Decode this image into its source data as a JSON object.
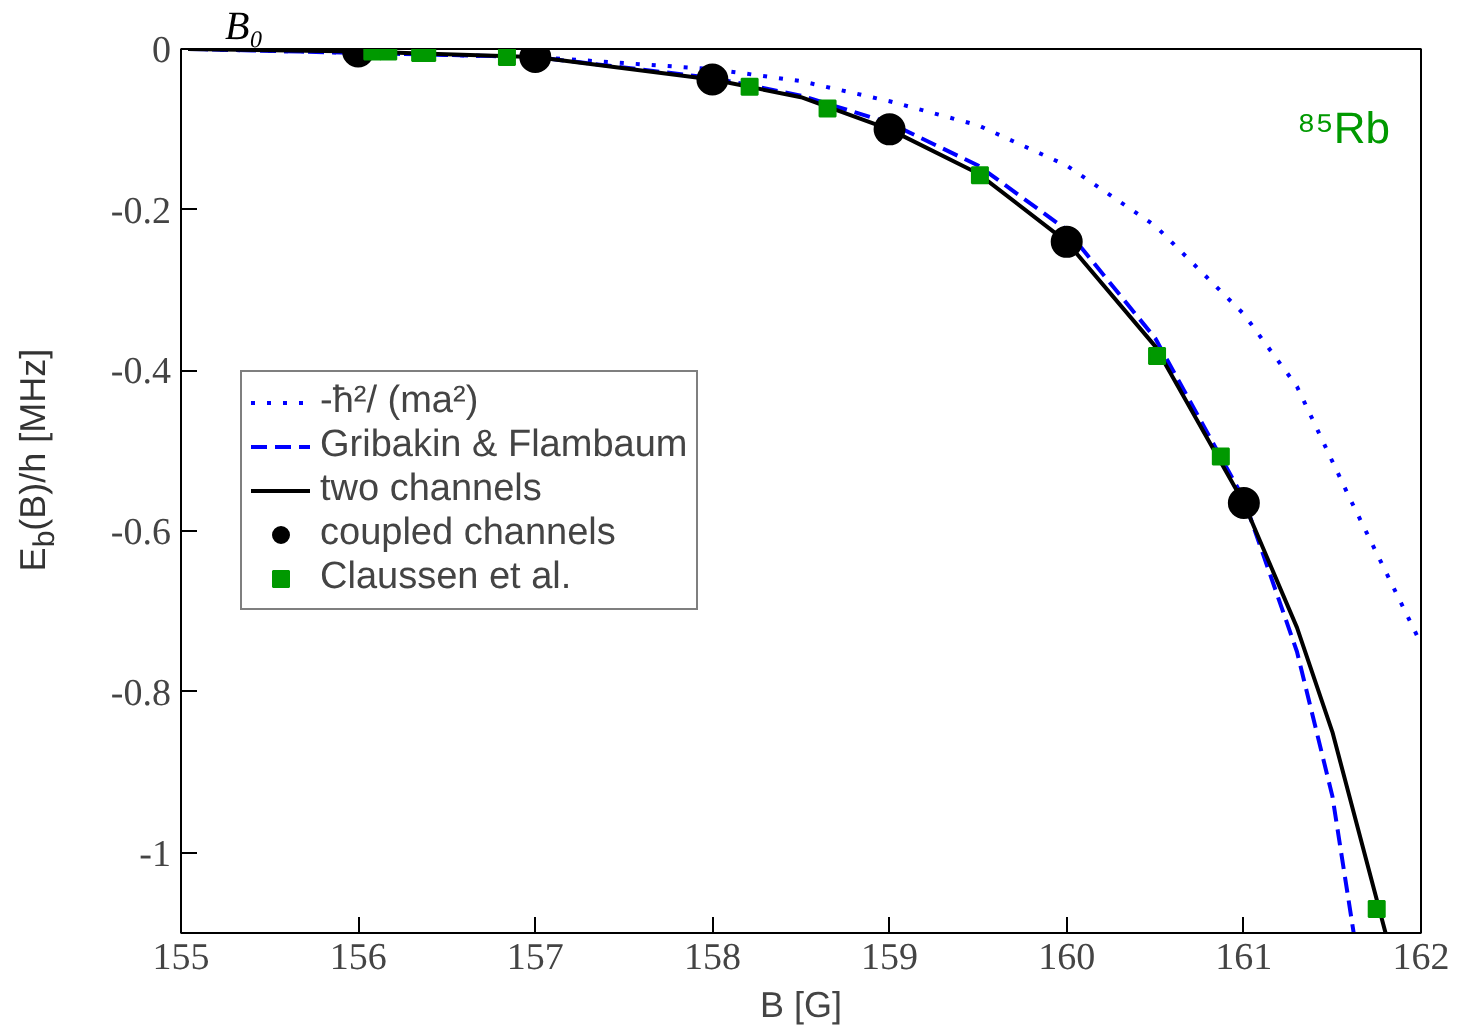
{
  "chart_data": {
    "type": "line",
    "xlabel": "B [G]",
    "ylabel": "E$_{b}$(B)/h [MHz]",
    "annotations": [
      "B₀",
      "⁸⁵Rb"
    ],
    "xlim": [
      155,
      162
    ],
    "ylim": [
      -1.1,
      0
    ],
    "xticks": [
      155,
      156,
      157,
      158,
      159,
      160,
      161,
      162
    ],
    "yticks": [
      {
        "value": -1,
        "label": "-1"
      },
      {
        "value": -0.8,
        "label": "-0.8"
      },
      {
        "value": -0.6,
        "label": "-0.6"
      },
      {
        "value": -0.4,
        "label": "-0.4"
      },
      {
        "value": -0.2,
        "label": "-0.2"
      },
      0
    ],
    "grid": false,
    "legend": "left",
    "series": [
      {
        "name": "-ħ²/ (ma²)",
        "color": "#0000ff",
        "line_style": "dotted",
        "x": [
          155.04,
          157,
          158,
          158.5,
          159,
          159.5,
          160,
          160.5,
          161,
          161.3,
          161.6,
          162
        ],
        "values": [
          0,
          -0.01,
          -0.025,
          -0.04,
          -0.065,
          -0.095,
          -0.145,
          -0.22,
          -0.33,
          -0.42,
          -0.56,
          -0.74
        ]
      },
      {
        "name": "Gribakin & Flambaum",
        "color": "#0000ff",
        "line_style": "dashed",
        "x": [
          155.04,
          157,
          158,
          158.5,
          159,
          159.5,
          160,
          160.5,
          161,
          161.3,
          161.5,
          161.62
        ],
        "values": [
          0,
          -0.01,
          -0.036,
          -0.058,
          -0.092,
          -0.145,
          -0.225,
          -0.36,
          -0.56,
          -0.75,
          -0.93,
          -1.1
        ]
      },
      {
        "name": "two channels",
        "color": "#000000",
        "line_style": "solid",
        "x": [
          155.04,
          156,
          157,
          158,
          158.5,
          159,
          159.5,
          160,
          160.5,
          161,
          161.3,
          161.5,
          161.8
        ],
        "values": [
          0,
          -0.003,
          -0.01,
          -0.038,
          -0.06,
          -0.1,
          -0.155,
          -0.24,
          -0.37,
          -0.565,
          -0.72,
          -0.85,
          -1.1
        ]
      },
      {
        "name": "coupled channels",
        "color": "#000000",
        "type": "scatter",
        "marker": "circle",
        "x": [
          156,
          157,
          158,
          159,
          160,
          161
        ],
        "values": [
          -0.003,
          -0.01,
          -0.038,
          -0.1,
          -0.24,
          -0.565
        ]
      },
      {
        "name": "Claussen et al.",
        "color": "#009900",
        "type": "scatter",
        "marker": "square",
        "x": [
          156.08,
          156.17,
          156.35,
          156.39,
          156.84,
          158.21,
          158.65,
          159.51,
          160.51,
          160.87,
          161.75
        ],
        "values": [
          -0.003,
          -0.003,
          -0.005,
          -0.005,
          -0.01,
          -0.047,
          -0.074,
          -0.157,
          -0.382,
          -0.507,
          -1.07
        ]
      }
    ]
  }
}
